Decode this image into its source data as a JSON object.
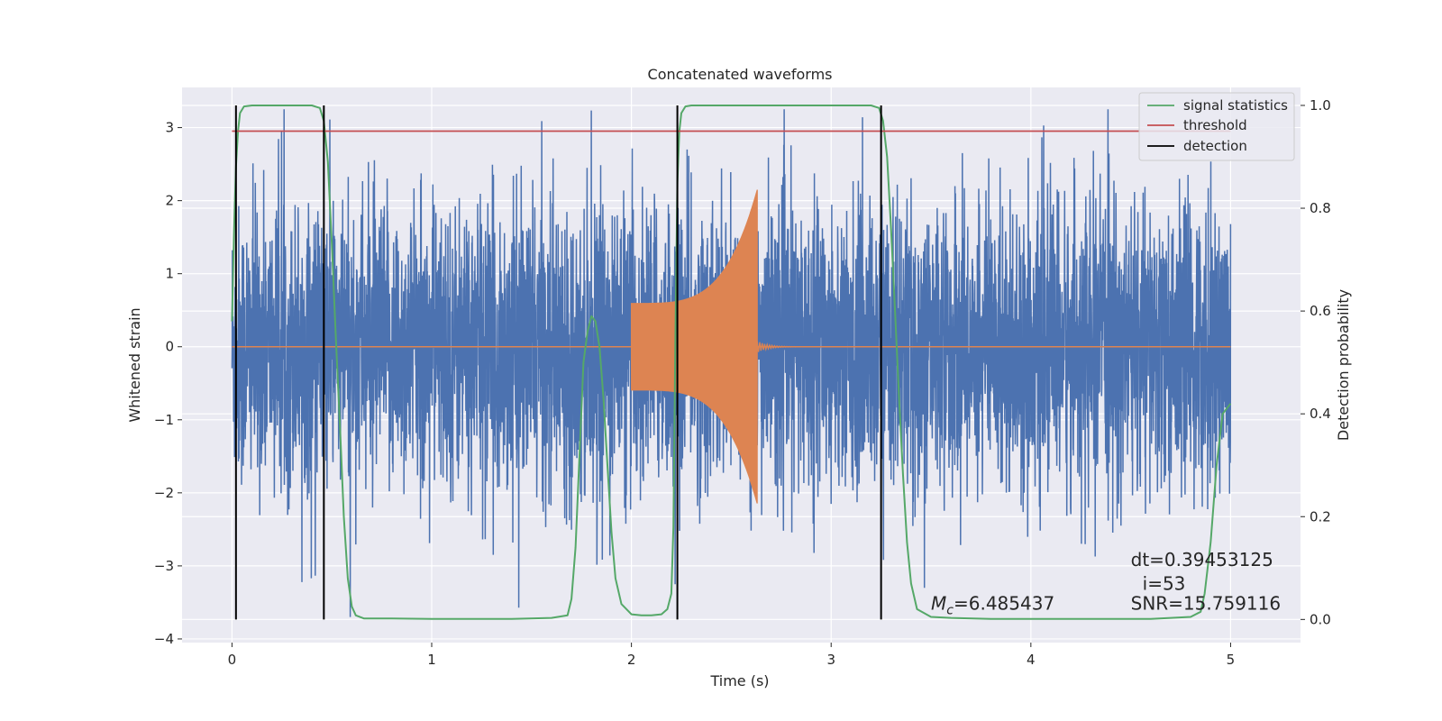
{
  "chart_data": {
    "type": "line",
    "title": "Concatenated waveforms",
    "xlabel": "Time (s)",
    "ylabel_left": "Whitened strain",
    "ylabel_right": "Detection probability",
    "xlim": [
      -0.25,
      5.35
    ],
    "ylim_left": [
      -4.05,
      3.55
    ],
    "ylim_right": [
      -0.045,
      1.035
    ],
    "x_ticks": [
      0,
      1,
      2,
      3,
      4,
      5
    ],
    "y_ticks_left": [
      -4,
      -3,
      -2,
      -1,
      0,
      1,
      2,
      3
    ],
    "y_ticks_right": [
      0.0,
      0.2,
      0.4,
      0.6,
      0.8,
      1.0
    ],
    "grid": true,
    "legend_position": "top-right",
    "colors": {
      "background": "#eaeaf2",
      "grid": "#ffffff",
      "strain": "#4c72b0",
      "template": "#dd8452",
      "signal_statistics": "#55a868",
      "threshold": "#c44e52",
      "detection": "#000000"
    },
    "series": [
      {
        "name": "signal statistics",
        "axis": "right",
        "x": [
          0.0,
          0.01,
          0.02,
          0.03,
          0.04,
          0.06,
          0.1,
          0.2,
          0.4,
          0.44,
          0.46,
          0.48,
          0.5,
          0.52,
          0.54,
          0.56,
          0.58,
          0.6,
          0.62,
          0.66,
          0.8,
          1.0,
          1.2,
          1.4,
          1.6,
          1.68,
          1.7,
          1.72,
          1.74,
          1.76,
          1.78,
          1.8,
          1.82,
          1.84,
          1.86,
          1.88,
          1.9,
          1.92,
          1.95,
          2.0,
          2.05,
          2.1,
          2.15,
          2.18,
          2.2,
          2.21,
          2.22,
          2.23,
          2.24,
          2.25,
          2.27,
          2.3,
          2.4,
          2.6,
          2.8,
          3.0,
          3.2,
          3.24,
          3.26,
          3.28,
          3.3,
          3.32,
          3.34,
          3.36,
          3.38,
          3.4,
          3.43,
          3.5,
          3.6,
          3.8,
          4.0,
          4.2,
          4.4,
          4.6,
          4.8,
          4.85,
          4.87,
          4.9,
          4.93,
          4.96,
          5.0
        ],
        "y": [
          0.58,
          0.75,
          0.88,
          0.95,
          0.985,
          0.998,
          1.0,
          1.0,
          1.0,
          0.995,
          0.97,
          0.89,
          0.73,
          0.55,
          0.38,
          0.2,
          0.08,
          0.025,
          0.008,
          0.002,
          0.002,
          0.001,
          0.001,
          0.001,
          0.003,
          0.008,
          0.04,
          0.14,
          0.32,
          0.5,
          0.56,
          0.59,
          0.58,
          0.53,
          0.43,
          0.3,
          0.17,
          0.08,
          0.03,
          0.01,
          0.008,
          0.008,
          0.01,
          0.02,
          0.05,
          0.18,
          0.55,
          0.85,
          0.95,
          0.985,
          0.998,
          1.0,
          1.0,
          1.0,
          1.0,
          1.0,
          1.0,
          0.995,
          0.97,
          0.9,
          0.76,
          0.6,
          0.43,
          0.28,
          0.15,
          0.07,
          0.02,
          0.005,
          0.003,
          0.001,
          0.001,
          0.001,
          0.001,
          0.001,
          0.005,
          0.015,
          0.05,
          0.15,
          0.3,
          0.4,
          0.42
        ]
      },
      {
        "name": "threshold",
        "axis": "right",
        "x": [
          0.0,
          5.0
        ],
        "y": [
          0.95,
          0.95
        ]
      },
      {
        "name": "detection",
        "axis": "right",
        "vlines": [
          0.02,
          0.46,
          2.23,
          3.25
        ],
        "ymin": 0.0,
        "ymax": 1.0
      },
      {
        "name": "",
        "axis": "left",
        "description_type": "noise",
        "x_range": [
          0.0,
          5.0
        ],
        "core_amplitude": 1.0,
        "max_amplitude": 3.25,
        "min_amplitude": -3.7
      },
      {
        "name": "",
        "axis": "left",
        "description_type": "chirp",
        "x_range": [
          2.0,
          2.64
        ],
        "start_amplitude": 0.6,
        "peak_amplitude": 2.15,
        "peak_x": 2.63,
        "ringdown_end": 3.0
      }
    ],
    "annotations": {
      "dt_label": "dt=0.39453125",
      "i_label": " i=53",
      "snr_label": "SNR=15.759116",
      "mc_symbol": "M",
      "mc_subscript": "c",
      "mc_value": "=6.485437",
      "dt_pos": [
        4.5,
        -3.0
      ],
      "i_pos": [
        4.53,
        -3.33
      ],
      "snr_pos": [
        4.5,
        -3.6
      ],
      "mc_pos": [
        3.5,
        -3.6
      ]
    }
  }
}
